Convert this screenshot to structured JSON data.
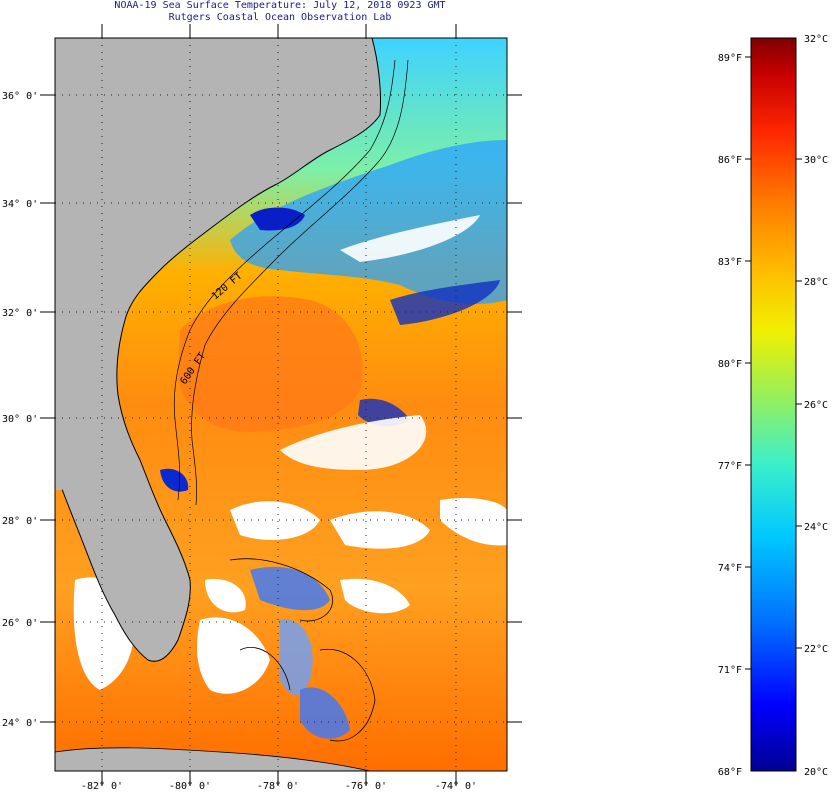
{
  "header": {
    "title": "NOAA-19 Sea Surface Temperature:  July 12, 2018 0923 GMT",
    "subtitle": "Rutgers Coastal Ocean Observation Lab"
  },
  "map": {
    "lat_labels": [
      "36° 0'",
      "34° 0'",
      "32° 0'",
      "30° 0'",
      "28° 0'",
      "26° 0'",
      "24° 0'"
    ],
    "lon_labels": [
      "-82° 0'",
      "-80° 0'",
      "-78° 0'",
      "-76° 0'",
      "-74° 0'"
    ],
    "contour_labels": [
      "120 FT",
      "600 FT"
    ],
    "colors": {
      "land": "#b4b4b4",
      "cloud": "#ffffff",
      "coastline": "#000000"
    }
  },
  "colorbar": {
    "fahrenheit_labels": [
      "89°F",
      "86°F",
      "83°F",
      "80°F",
      "77°F",
      "74°F",
      "71°F",
      "68°F"
    ],
    "celsius_labels": [
      "32°C",
      "30°C",
      "28°C",
      "26°C",
      "24°C",
      "22°C",
      "20°C"
    ],
    "colors": [
      "#00008f",
      "#0000ff",
      "#006eff",
      "#00c8ff",
      "#3cf0c8",
      "#a0f050",
      "#f0f000",
      "#ffbe00",
      "#ff7800",
      "#ff2800",
      "#c80000",
      "#7f0000"
    ]
  }
}
